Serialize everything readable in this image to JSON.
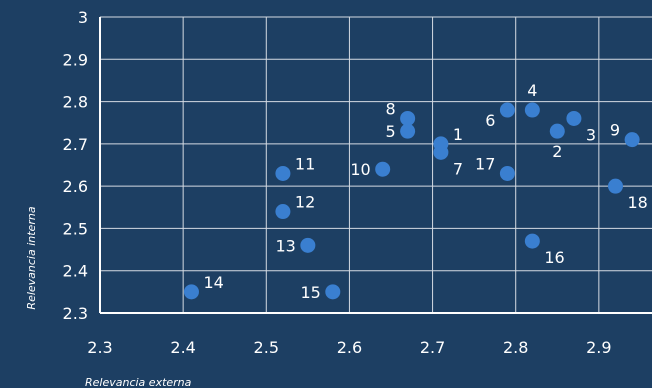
{
  "chart_data": {
    "type": "scatter",
    "title": "",
    "xlabel": "Relevancia externa",
    "ylabel": "Relevancia interna",
    "xlim": [
      2.3,
      3.0
    ],
    "ylim": [
      2.3,
      3.0
    ],
    "xticks": [
      "2.3",
      "2.4",
      "2.5",
      "2.6",
      "2.7",
      "2.8",
      "2.9"
    ],
    "yticks": [
      "2.3",
      "2.4",
      "2.5",
      "2.6",
      "2.7",
      "2.8",
      "2.9",
      "3"
    ],
    "grid": true,
    "legend": "none",
    "point_color": "#3a7fd0",
    "background_color": "#1d3f63",
    "points": [
      {
        "label": "1",
        "x": 2.71,
        "y": 2.7,
        "label_pos": "right-up"
      },
      {
        "label": "2",
        "x": 2.85,
        "y": 2.73,
        "label_pos": "below"
      },
      {
        "label": "3",
        "x": 2.87,
        "y": 2.76,
        "label_pos": "right-down"
      },
      {
        "label": "4",
        "x": 2.82,
        "y": 2.78,
        "label_pos": "above"
      },
      {
        "label": "5",
        "x": 2.67,
        "y": 2.73,
        "label_pos": "left"
      },
      {
        "label": "6",
        "x": 2.79,
        "y": 2.78,
        "label_pos": "left-down"
      },
      {
        "label": "7",
        "x": 2.71,
        "y": 2.68,
        "label_pos": "right-down"
      },
      {
        "label": "8",
        "x": 2.67,
        "y": 2.76,
        "label_pos": "left-up"
      },
      {
        "label": "9",
        "x": 2.94,
        "y": 2.71,
        "label_pos": "left-up"
      },
      {
        "label": "10",
        "x": 2.64,
        "y": 2.64,
        "label_pos": "left"
      },
      {
        "label": "11",
        "x": 2.52,
        "y": 2.63,
        "label_pos": "right-up"
      },
      {
        "label": "12",
        "x": 2.52,
        "y": 2.54,
        "label_pos": "right-up"
      },
      {
        "label": "13",
        "x": 2.55,
        "y": 2.46,
        "label_pos": "left"
      },
      {
        "label": "14",
        "x": 2.41,
        "y": 2.35,
        "label_pos": "right-up"
      },
      {
        "label": "15",
        "x": 2.58,
        "y": 2.35,
        "label_pos": "left"
      },
      {
        "label": "16",
        "x": 2.82,
        "y": 2.47,
        "label_pos": "right-down"
      },
      {
        "label": "17",
        "x": 2.79,
        "y": 2.63,
        "label_pos": "left-up"
      },
      {
        "label": "18",
        "x": 2.92,
        "y": 2.6,
        "label_pos": "right-down"
      }
    ]
  }
}
